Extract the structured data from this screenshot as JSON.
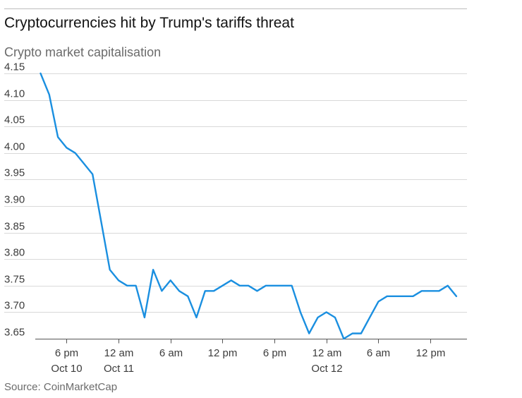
{
  "header": {
    "title": "Cryptocurrencies hit by Trump's tariffs threat",
    "subtitle": "Crypto market capitalisation"
  },
  "footer": {
    "source": "Source: CoinMarketCap"
  },
  "colors": {
    "line": "#1a8fe0",
    "grid": "#d9d9d9",
    "axis": "#555555",
    "text": "#3c3c3c"
  },
  "chart_data": {
    "type": "line",
    "title": "Cryptocurrencies hit by Trump's tariffs threat",
    "subtitle": "Crypto market capitalisation",
    "xlabel": "",
    "ylabel": "",
    "ylim": [
      3.65,
      4.15
    ],
    "yticks": [
      4.15,
      4.1,
      4.05,
      4.0,
      3.95,
      3.9,
      3.85,
      3.8,
      3.75,
      3.7,
      3.65
    ],
    "ytick_labels": [
      "4.15",
      "4.10",
      "4.05",
      "4.00",
      "3.95",
      "3.90",
      "3.85",
      "3.80",
      "3.75",
      "3.70",
      "3.65"
    ],
    "xlim": [
      0,
      49
    ],
    "xticks": [
      {
        "x": 3,
        "line1": "6 pm",
        "line2": "Oct 10"
      },
      {
        "x": 9,
        "line1": "12 am",
        "line2": "Oct 11"
      },
      {
        "x": 15,
        "line1": "6 am",
        "line2": ""
      },
      {
        "x": 21,
        "line1": "12 pm",
        "line2": ""
      },
      {
        "x": 27,
        "line1": "6 pm",
        "line2": ""
      },
      {
        "x": 33,
        "line1": "12 am",
        "line2": "Oct 12"
      },
      {
        "x": 39,
        "line1": "6 am",
        "line2": ""
      },
      {
        "x": 45,
        "line1": "12 pm",
        "line2": ""
      }
    ],
    "grid": true,
    "series": [
      {
        "name": "Crypto market capitalisation",
        "x": [
          0,
          1,
          2,
          3,
          4,
          5,
          6,
          7,
          8,
          9,
          10,
          11,
          12,
          13,
          14,
          15,
          16,
          17,
          18,
          19,
          20,
          21,
          22,
          23,
          24,
          25,
          26,
          27,
          28,
          29,
          30,
          31,
          32,
          33,
          34,
          35,
          36,
          37,
          38,
          39,
          40,
          41,
          42,
          43,
          44,
          45,
          46,
          47,
          48
        ],
        "values": [
          4.15,
          4.11,
          4.03,
          4.01,
          4.0,
          3.98,
          3.96,
          3.87,
          3.78,
          3.76,
          3.75,
          3.75,
          3.69,
          3.78,
          3.74,
          3.76,
          3.74,
          3.73,
          3.69,
          3.74,
          3.74,
          3.75,
          3.76,
          3.75,
          3.75,
          3.74,
          3.75,
          3.75,
          3.75,
          3.75,
          3.7,
          3.66,
          3.69,
          3.7,
          3.69,
          3.65,
          3.66,
          3.66,
          3.69,
          3.72,
          3.73,
          3.73,
          3.73,
          3.73,
          3.74,
          3.74,
          3.74,
          3.75,
          3.73
        ]
      }
    ]
  }
}
